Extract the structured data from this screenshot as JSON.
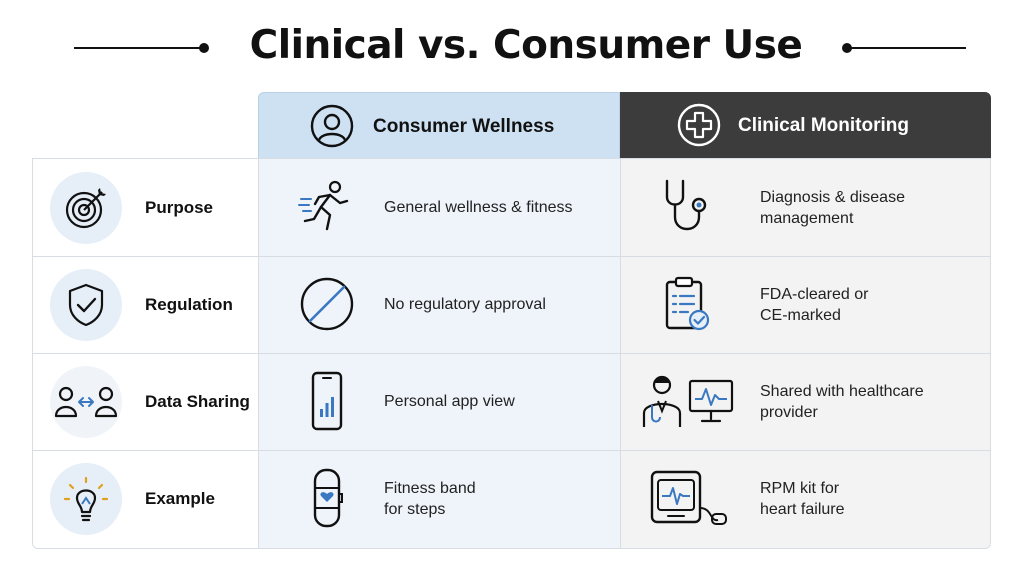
{
  "title": "Clinical vs. Consumer Use",
  "columns": {
    "consumer": {
      "label": "Consumer Wellness",
      "icon": "person-icon",
      "color": "#cde1f3"
    },
    "clinical": {
      "label": "Clinical Monitoring",
      "icon": "medical-cross-icon",
      "color": "#3c3c3c"
    }
  },
  "rows": [
    {
      "label": "Purpose",
      "icon": "target-icon",
      "consumer": {
        "text": "General wellness & fitness",
        "icon": "running-person-icon"
      },
      "clinical": {
        "text": "Diagnosis & disease\nmanagement",
        "icon": "stethoscope-icon"
      }
    },
    {
      "label": "Regulation",
      "icon": "shield-check-icon",
      "consumer": {
        "text": "No regulatory approval",
        "icon": "no-sign-icon"
      },
      "clinical": {
        "text": "FDA-cleared or\nCE-marked",
        "icon": "clipboard-check-icon"
      }
    },
    {
      "label": "Data Sharing",
      "icon": "people-exchange-icon",
      "consumer": {
        "text": "Personal app view",
        "icon": "phone-chart-icon"
      },
      "clinical": {
        "text": "Shared with healthcare\nprovider",
        "icon": "doctor-monitor-icon"
      }
    },
    {
      "label": "Example",
      "icon": "lightbulb-icon",
      "consumer": {
        "text": "Fitness band\nfor steps",
        "icon": "fitness-band-icon"
      },
      "clinical": {
        "text": "RPM kit for\nheart failure",
        "icon": "rpm-kit-icon"
      }
    }
  ],
  "colors": {
    "accent": "#3a78c2",
    "ink": "#1a1a1a",
    "border": "#d7dde3"
  }
}
